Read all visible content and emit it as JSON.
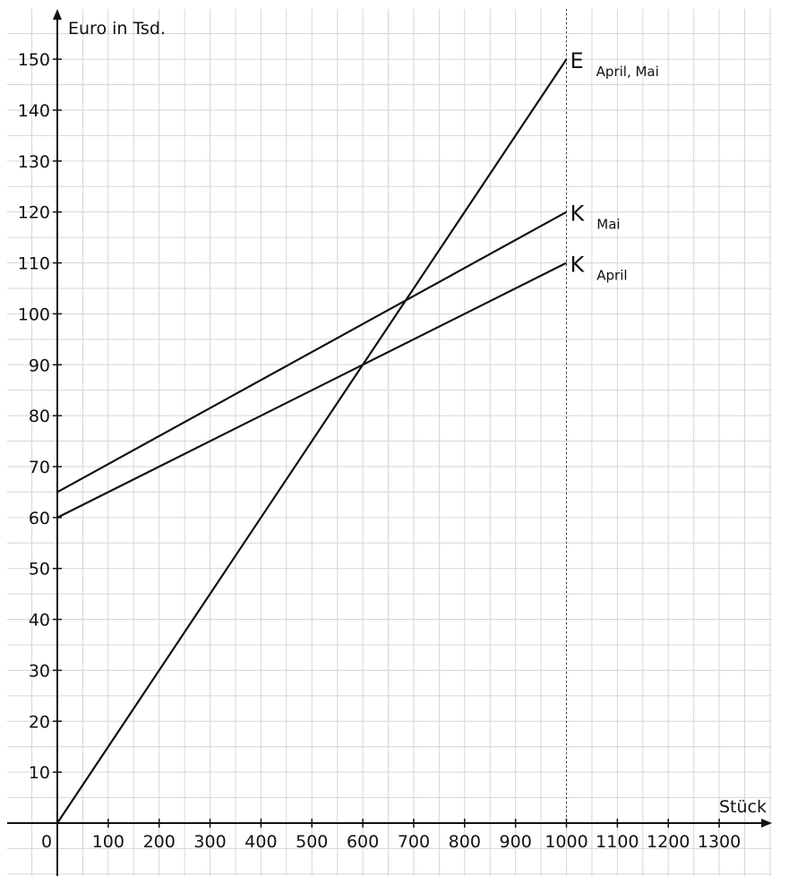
{
  "chart_data": {
    "type": "line",
    "xlabel": "Stück",
    "ylabel": "Euro in Tsd.",
    "x_origin_label": "0",
    "xlim": [
      -100,
      1400
    ],
    "ylim": [
      -10,
      160
    ],
    "x_ticks": [
      100,
      200,
      300,
      400,
      500,
      600,
      700,
      800,
      900,
      1000,
      1100,
      1200,
      1300
    ],
    "y_ticks": [
      10,
      20,
      30,
      40,
      50,
      60,
      70,
      80,
      90,
      100,
      110,
      120,
      130,
      140,
      150
    ],
    "grid": true,
    "reference_line": {
      "x": 1000,
      "style": "dotted"
    },
    "series": [
      {
        "name": "E",
        "subscript": "April, Mai",
        "x": [
          0,
          1000
        ],
        "y": [
          0,
          150
        ]
      },
      {
        "name": "K",
        "subscript": "Mai",
        "x": [
          0,
          1000
        ],
        "y": [
          65,
          120
        ]
      },
      {
        "name": "K",
        "subscript": "April",
        "x": [
          0,
          1000
        ],
        "y": [
          60,
          110
        ]
      }
    ]
  }
}
